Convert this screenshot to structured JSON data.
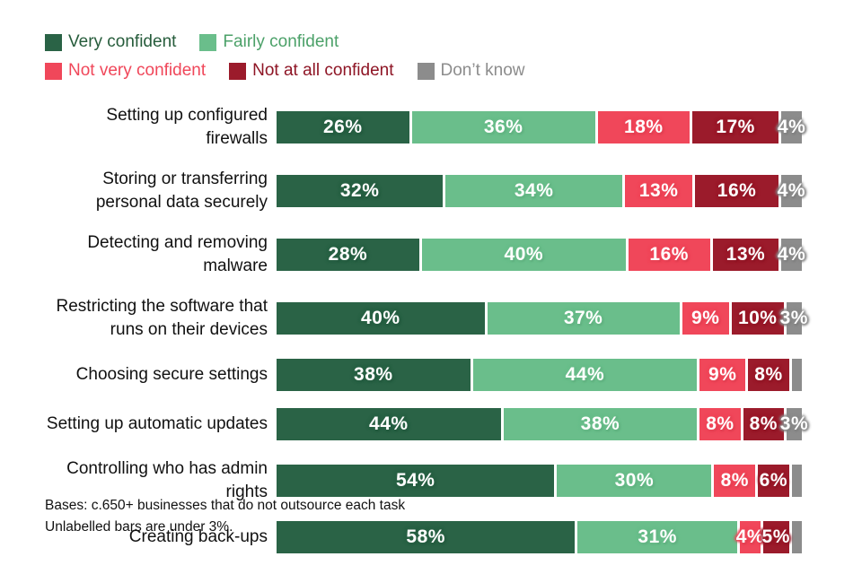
{
  "legend": [
    {
      "label": "Very confident",
      "color": "#2A6346",
      "text_color": "#265C3B"
    },
    {
      "label": "Fairly confident",
      "color": "#6ABE8B",
      "text_color": "#4CA169"
    },
    {
      "label": "Not very confident",
      "color": "#F0475A",
      "text_color": "#F0475A"
    },
    {
      "label": "Not at all confident",
      "color": "#9B1B2B",
      "text_color": "#8E1525"
    },
    {
      "label": "Don’t know",
      "color": "#8C8C8C",
      "text_color": "#8C8C8C"
    }
  ],
  "chart_data": {
    "type": "bar",
    "orientation": "horizontal-stacked",
    "unit": "%",
    "series_names": [
      "Very confident",
      "Fairly confident",
      "Not very confident",
      "Not at all confident",
      "Don't know"
    ],
    "categories": [
      "Setting up configured firewalls",
      "Storing or transferring personal data securely",
      "Detecting and removing malware",
      "Restricting the software that runs on their devices",
      "Choosing secure settings",
      "Setting up automatic updates",
      "Controlling who has admin rights",
      "Creating back-ups"
    ],
    "rows": [
      {
        "category": "Setting up configured firewalls",
        "values": [
          26,
          36,
          18,
          17,
          4
        ],
        "labels": [
          "26%",
          "36%",
          "18%",
          "17%",
          "4%"
        ]
      },
      {
        "category": "Storing or transferring personal data securely",
        "values": [
          32,
          34,
          13,
          16,
          4
        ],
        "labels": [
          "32%",
          "34%",
          "13%",
          "16%",
          "4%"
        ]
      },
      {
        "category": "Detecting and removing malware",
        "values": [
          28,
          40,
          16,
          13,
          4
        ],
        "labels": [
          "28%",
          "40%",
          "16%",
          "13%",
          "4%"
        ]
      },
      {
        "category": "Restricting the software that runs on their devices",
        "values": [
          40,
          37,
          9,
          10,
          3
        ],
        "labels": [
          "40%",
          "37%",
          "9%",
          "10%",
          "3%"
        ]
      },
      {
        "category": "Choosing secure settings",
        "values": [
          38,
          44,
          9,
          8,
          2
        ],
        "labels": [
          "38%",
          "44%",
          "9%",
          "8%",
          ""
        ]
      },
      {
        "category": "Setting up automatic updates",
        "values": [
          44,
          38,
          8,
          8,
          3
        ],
        "labels": [
          "44%",
          "38%",
          "8%",
          "8%",
          "3%"
        ]
      },
      {
        "category": "Controlling who has admin rights",
        "values": [
          54,
          30,
          8,
          6,
          2
        ],
        "labels": [
          "54%",
          "30%",
          "8%",
          "6%",
          ""
        ]
      },
      {
        "category": "Creating back-ups",
        "values": [
          58,
          31,
          4,
          5,
          2
        ],
        "labels": [
          "58%",
          "31%",
          "4%",
          "5%",
          ""
        ]
      }
    ],
    "legend_position": "top-left",
    "grid": false,
    "xlim": [
      0,
      100
    ]
  },
  "footer": {
    "line1": "Bases: c.650+ businesses that do not outsource each task",
    "line2": "Unlabelled bars are under 3%."
  }
}
